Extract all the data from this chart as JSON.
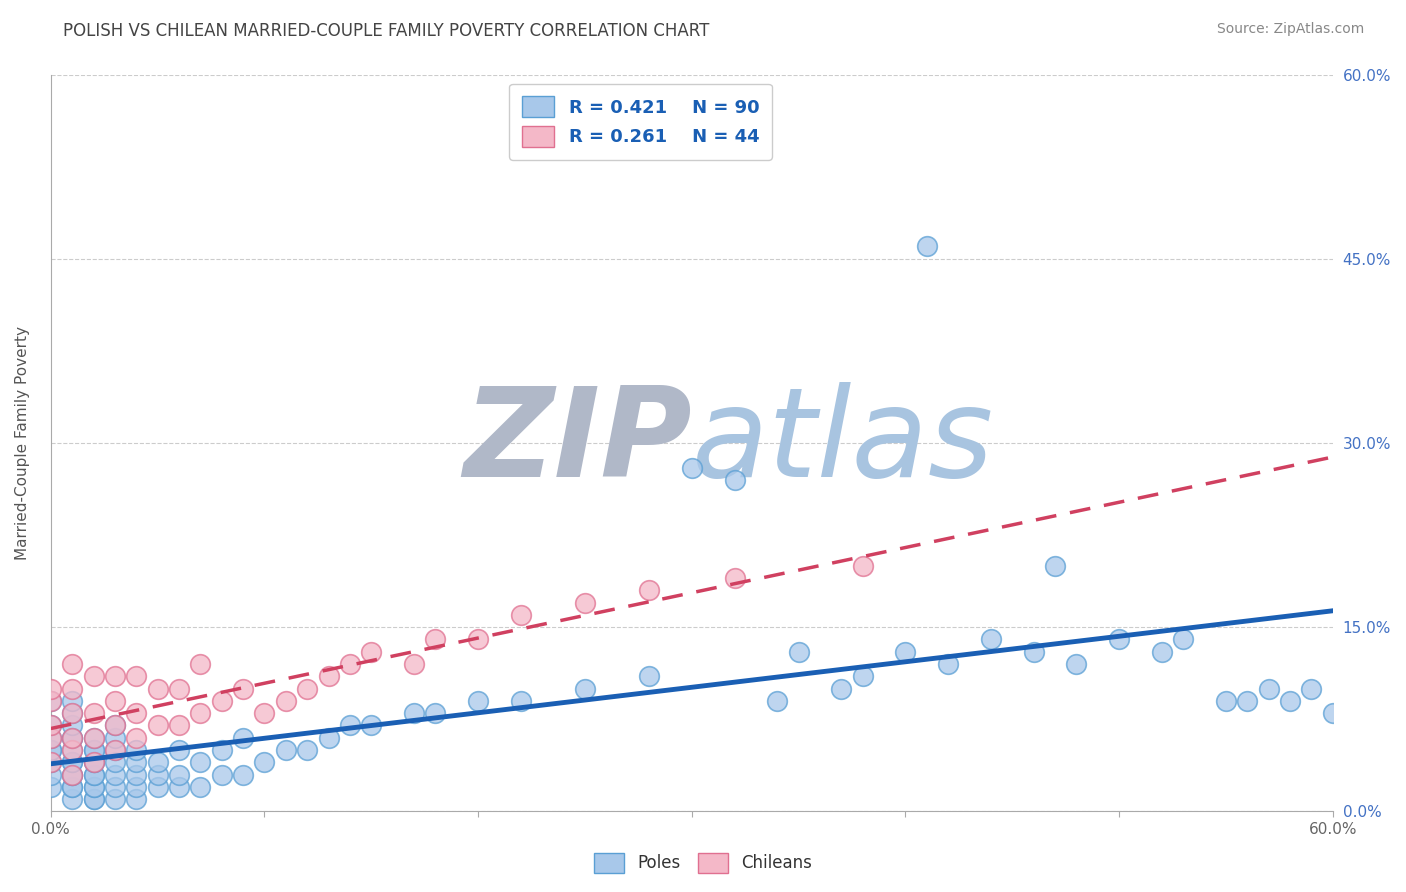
{
  "title": "POLISH VS CHILEAN MARRIED-COUPLE FAMILY POVERTY CORRELATION CHART",
  "source": "Source: ZipAtlas.com",
  "ylabel": "Married-Couple Family Poverty",
  "xlim": [
    0.0,
    0.6
  ],
  "ylim": [
    0.0,
    0.6
  ],
  "xticks": [
    0.0,
    0.1,
    0.2,
    0.3,
    0.4,
    0.5,
    0.6
  ],
  "xtick_labels": [
    "0.0%",
    "",
    "",
    "",
    "",
    "",
    "60.0%"
  ],
  "ytick_labels_right": [
    "0.0%",
    "15.0%",
    "30.0%",
    "45.0%",
    "60.0%"
  ],
  "yticks_right": [
    0.0,
    0.15,
    0.3,
    0.45,
    0.6
  ],
  "poles_color": "#a8c8ea",
  "poles_edge_color": "#5a9fd4",
  "chileans_color": "#f4b8c8",
  "chileans_edge_color": "#e07090",
  "trend_poles_color": "#1a5fb4",
  "trend_chileans_color": "#d04060",
  "legend_box_poles_color": "#a8c8ea",
  "legend_box_chileans_color": "#f4b8c8",
  "legend_box_poles_edge": "#5a9fd4",
  "legend_box_chileans_edge": "#e07090",
  "R_poles": 0.421,
  "N_poles": 90,
  "R_chileans": 0.261,
  "N_chileans": 44,
  "background_color": "#ffffff",
  "grid_color": "#cccccc",
  "watermark_ZIP_color": "#b0b8c8",
  "watermark_atlas_color": "#a8c4e0",
  "title_color": "#444444",
  "legend_text_color": "#1a5fb4",
  "poles_x": [
    0.0,
    0.0,
    0.0,
    0.0,
    0.0,
    0.0,
    0.0,
    0.0,
    0.01,
    0.01,
    0.01,
    0.01,
    0.01,
    0.01,
    0.01,
    0.01,
    0.01,
    0.01,
    0.01,
    0.01,
    0.01,
    0.02,
    0.02,
    0.02,
    0.02,
    0.02,
    0.02,
    0.02,
    0.02,
    0.02,
    0.02,
    0.02,
    0.03,
    0.03,
    0.03,
    0.03,
    0.03,
    0.03,
    0.03,
    0.04,
    0.04,
    0.04,
    0.04,
    0.04,
    0.05,
    0.05,
    0.05,
    0.06,
    0.06,
    0.06,
    0.07,
    0.07,
    0.08,
    0.08,
    0.09,
    0.09,
    0.1,
    0.11,
    0.12,
    0.13,
    0.14,
    0.15,
    0.17,
    0.18,
    0.2,
    0.22,
    0.25,
    0.28,
    0.3,
    0.32,
    0.35,
    0.38,
    0.4,
    0.42,
    0.44,
    0.46,
    0.48,
    0.5,
    0.52,
    0.55,
    0.57,
    0.58,
    0.59,
    0.6,
    0.34,
    0.37,
    0.41,
    0.47,
    0.53,
    0.56
  ],
  "poles_y": [
    0.02,
    0.03,
    0.04,
    0.05,
    0.05,
    0.06,
    0.07,
    0.09,
    0.01,
    0.02,
    0.02,
    0.03,
    0.03,
    0.04,
    0.04,
    0.05,
    0.06,
    0.06,
    0.07,
    0.08,
    0.09,
    0.01,
    0.01,
    0.02,
    0.02,
    0.03,
    0.03,
    0.04,
    0.04,
    0.05,
    0.05,
    0.06,
    0.01,
    0.02,
    0.03,
    0.04,
    0.05,
    0.06,
    0.07,
    0.01,
    0.02,
    0.03,
    0.04,
    0.05,
    0.02,
    0.03,
    0.04,
    0.02,
    0.03,
    0.05,
    0.02,
    0.04,
    0.03,
    0.05,
    0.03,
    0.06,
    0.04,
    0.05,
    0.05,
    0.06,
    0.07,
    0.07,
    0.08,
    0.08,
    0.09,
    0.09,
    0.1,
    0.11,
    0.28,
    0.27,
    0.13,
    0.11,
    0.13,
    0.12,
    0.14,
    0.13,
    0.12,
    0.14,
    0.13,
    0.09,
    0.1,
    0.09,
    0.1,
    0.08,
    0.09,
    0.1,
    0.46,
    0.2,
    0.14,
    0.09
  ],
  "chileans_x": [
    0.0,
    0.0,
    0.0,
    0.0,
    0.0,
    0.01,
    0.01,
    0.01,
    0.01,
    0.01,
    0.01,
    0.02,
    0.02,
    0.02,
    0.02,
    0.03,
    0.03,
    0.03,
    0.03,
    0.04,
    0.04,
    0.04,
    0.05,
    0.05,
    0.06,
    0.06,
    0.07,
    0.07,
    0.08,
    0.09,
    0.1,
    0.11,
    0.12,
    0.13,
    0.14,
    0.15,
    0.17,
    0.18,
    0.2,
    0.22,
    0.25,
    0.28,
    0.32,
    0.38
  ],
  "chileans_y": [
    0.04,
    0.06,
    0.07,
    0.09,
    0.1,
    0.03,
    0.05,
    0.06,
    0.08,
    0.1,
    0.12,
    0.04,
    0.06,
    0.08,
    0.11,
    0.05,
    0.07,
    0.09,
    0.11,
    0.06,
    0.08,
    0.11,
    0.07,
    0.1,
    0.07,
    0.1,
    0.08,
    0.12,
    0.09,
    0.1,
    0.08,
    0.09,
    0.1,
    0.11,
    0.12,
    0.13,
    0.12,
    0.14,
    0.14,
    0.16,
    0.17,
    0.18,
    0.19,
    0.2
  ]
}
